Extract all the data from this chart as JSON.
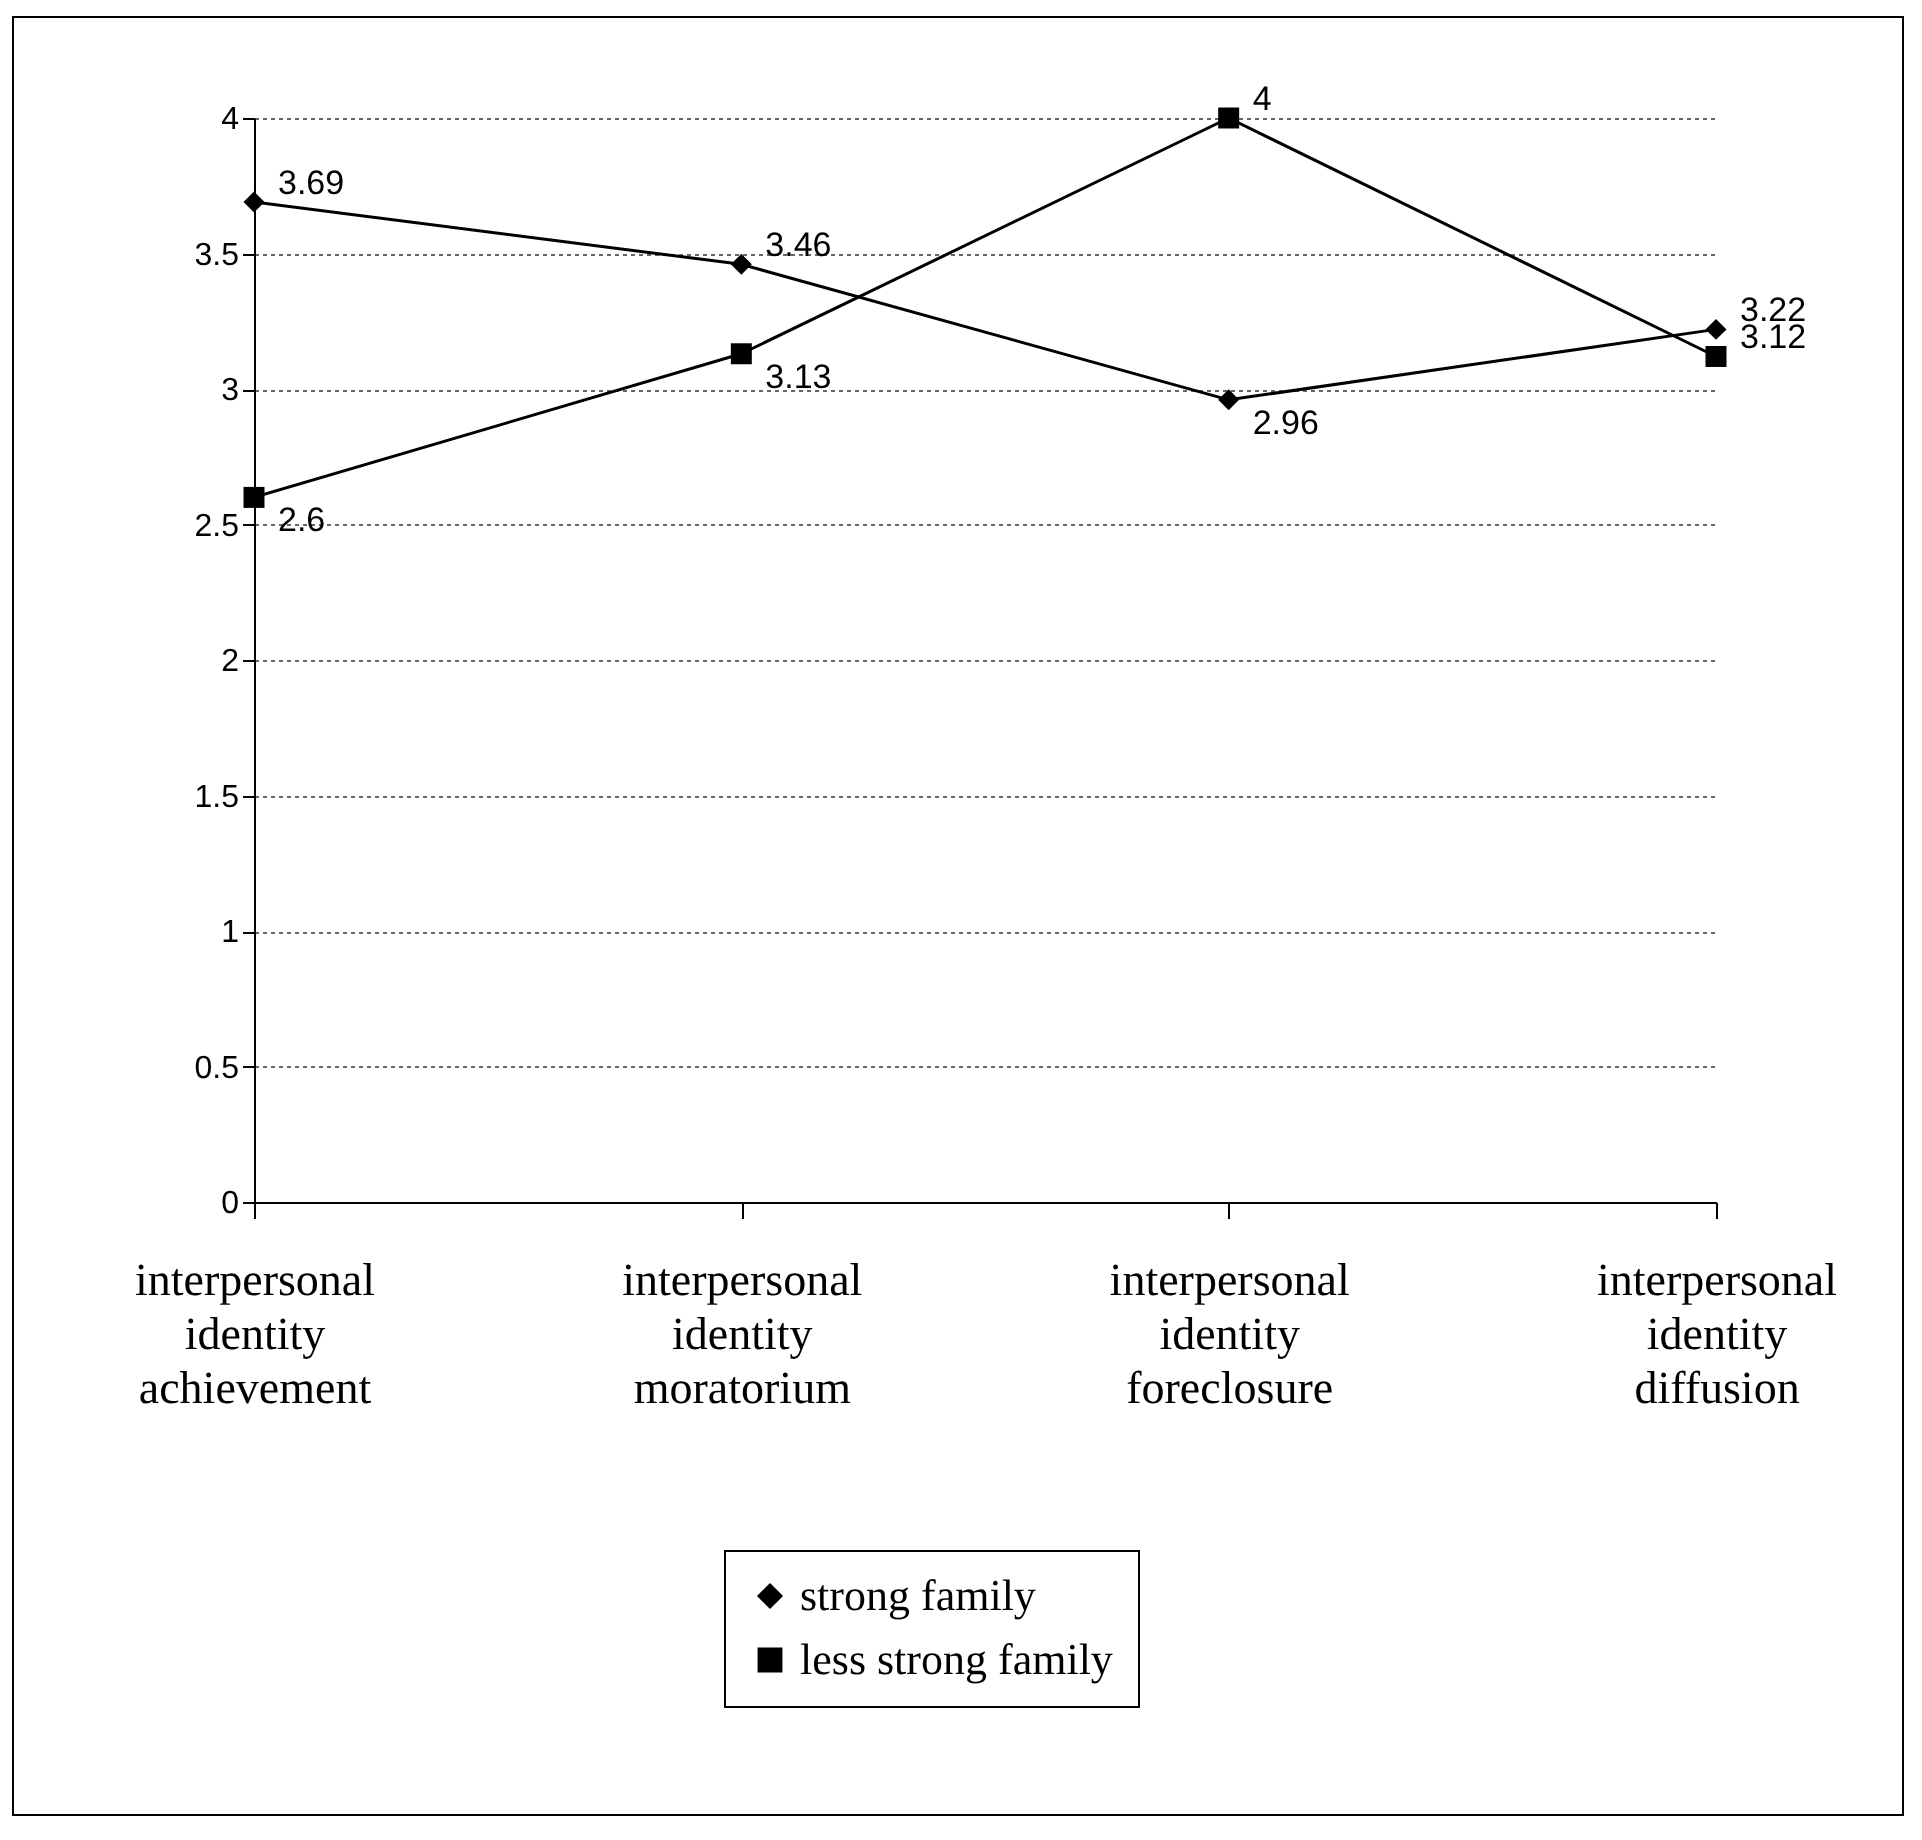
{
  "chart_data": {
    "type": "line",
    "categories": [
      "interpersonal identity achievement",
      "interpersonal identity moratorium",
      "interpersonal identity foreclosure",
      "interpersonal identity diffusion"
    ],
    "series": [
      {
        "name": "strong family",
        "color": "#000000",
        "marker": "diamond",
        "values": [
          3.69,
          3.46,
          2.96,
          3.22
        ]
      },
      {
        "name": "less strong family",
        "color": "#000000",
        "marker": "square",
        "values": [
          2.6,
          3.13,
          4,
          3.12
        ]
      }
    ],
    "ylim": [
      0,
      4
    ],
    "yticks": [
      0,
      0.5,
      1,
      1.5,
      2,
      2.5,
      3,
      3.5,
      4
    ],
    "grid": "y",
    "legend": "bottom",
    "data_labels": true,
    "line_style": "solid"
  }
}
